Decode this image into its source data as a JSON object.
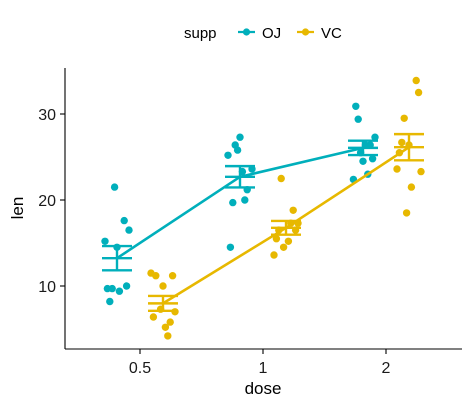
{
  "chart_data": {
    "type": "scatter",
    "title": "",
    "xlabel": "dose",
    "ylabel": "len",
    "categories": [
      "0.5",
      "1",
      "2"
    ],
    "ylim": [
      3.5,
      35.5
    ],
    "yticks": [
      10,
      20,
      30
    ],
    "grid": false,
    "legend": {
      "title": "supp",
      "position": "top"
    },
    "series": [
      {
        "name": "OJ",
        "color": "#00AFBB",
        "means": [
          13.23,
          22.7,
          26.06
        ],
        "se": [
          1.41,
          1.24,
          0.84
        ],
        "points": [
          [
            15.2,
            21.5,
            17.6,
            9.7,
            14.5,
            10.0,
            8.2,
            9.4,
            16.5,
            9.7
          ],
          [
            19.7,
            23.3,
            23.6,
            26.4,
            20.0,
            25.2,
            25.8,
            21.2,
            14.5,
            27.3
          ],
          [
            25.5,
            26.4,
            22.4,
            24.5,
            24.8,
            30.9,
            26.4,
            27.3,
            29.4,
            23.0
          ]
        ]
      },
      {
        "name": "VC",
        "color": "#E7B800",
        "means": [
          7.98,
          16.77,
          26.14
        ],
        "se": [
          0.87,
          0.8,
          1.52
        ],
        "points": [
          [
            4.2,
            11.5,
            7.3,
            5.8,
            6.4,
            10.0,
            11.2,
            11.2,
            5.2,
            7.0
          ],
          [
            16.5,
            16.5,
            15.2,
            17.3,
            22.5,
            17.3,
            13.6,
            14.5,
            18.8,
            15.5
          ],
          [
            23.6,
            18.5,
            33.9,
            25.5,
            26.4,
            32.5,
            26.7,
            21.5,
            23.3,
            29.5
          ]
        ]
      }
    ]
  }
}
